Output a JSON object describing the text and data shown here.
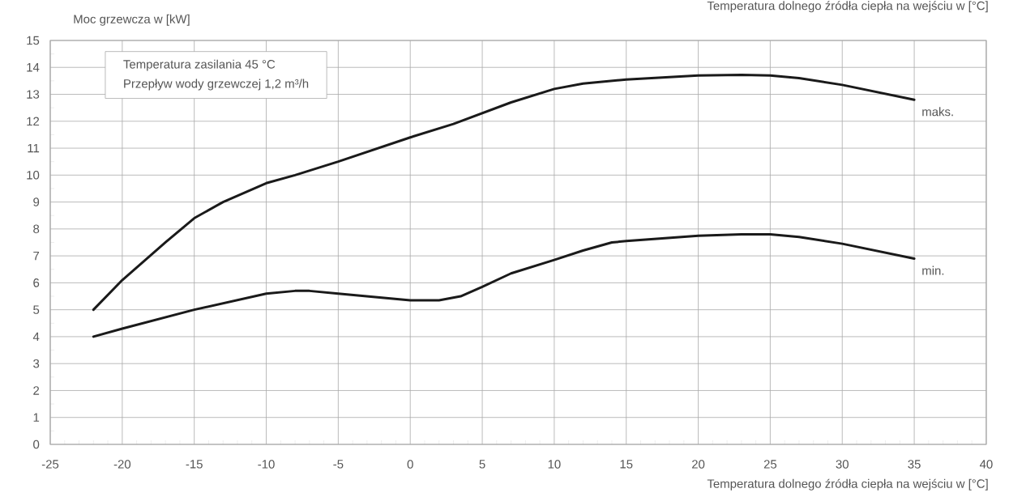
{
  "chart_data": {
    "type": "line",
    "xlabel": "Temperatura dolnego źródła ciepła na wejściu w [°C]",
    "ylabel": "Moc grzewcza w [kW]",
    "annotations": [
      "Temperatura zasilania 45 °C",
      "Przepływ wody grzewczej 1,2 m³/h",
      "Temperatura dolnego źródła ciepła na wejściu w [°C]"
    ],
    "x": [
      -22,
      -20,
      -17,
      -15,
      -13,
      -10,
      -8,
      -5,
      0,
      3,
      5,
      7,
      10,
      12,
      15,
      20,
      23,
      25,
      27,
      30,
      35
    ],
    "series": [
      {
        "name": "maks.",
        "color": "#1a1a1a",
        "values": [
          5.0,
          6.1,
          7.5,
          8.4,
          9.0,
          9.7,
          10.0,
          10.5,
          11.4,
          11.9,
          12.3,
          12.7,
          13.2,
          13.4,
          13.55,
          13.7,
          13.72,
          13.7,
          13.6,
          13.35,
          12.8
        ]
      },
      {
        "name": "min.",
        "color": "#1a1a1a",
        "x": [
          -22,
          -20,
          -15,
          -10,
          -8,
          -7,
          -5,
          0,
          2,
          3.5,
          5,
          7,
          10,
          12,
          14,
          15,
          20,
          23,
          25,
          27,
          30,
          35
        ],
        "values": [
          4.0,
          4.3,
          5.0,
          5.6,
          5.7,
          5.7,
          5.6,
          5.35,
          5.35,
          5.5,
          5.85,
          6.35,
          6.85,
          7.2,
          7.5,
          7.55,
          7.75,
          7.8,
          7.8,
          7.7,
          7.45,
          6.9
        ]
      }
    ],
    "xlim": [
      -25,
      40
    ],
    "xticks": [
      -25,
      -20,
      -15,
      -10,
      -5,
      0,
      5,
      10,
      15,
      20,
      25,
      30,
      35,
      40
    ],
    "ylim": [
      0,
      15
    ],
    "yticks": [
      0,
      1,
      2,
      3,
      4,
      5,
      6,
      7,
      8,
      9,
      10,
      11,
      12,
      13,
      14,
      15
    ],
    "grid": true,
    "legend": false,
    "marker": "none",
    "line_style": "solid"
  }
}
